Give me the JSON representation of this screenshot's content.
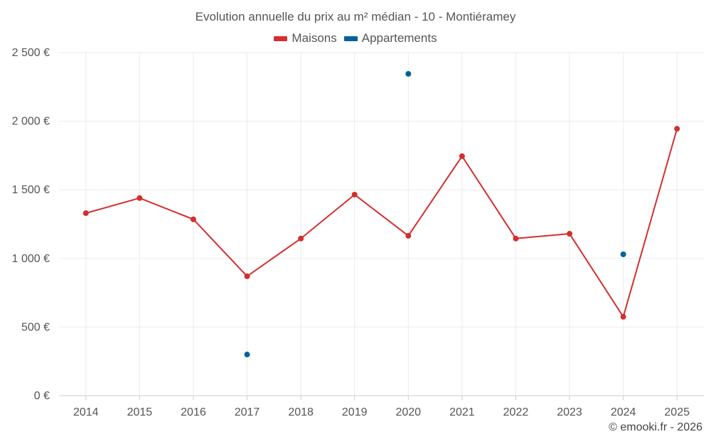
{
  "chart_data": {
    "type": "line",
    "title": "Evolution annuelle du prix au m² médian - 10 - Montiéramey",
    "xlabel": "",
    "ylabel": "",
    "categories": [
      "2014",
      "2015",
      "2016",
      "2017",
      "2018",
      "2019",
      "2020",
      "2021",
      "2022",
      "2023",
      "2024",
      "2025"
    ],
    "ylim": [
      0,
      2500
    ],
    "yticks": [
      0,
      500,
      1000,
      1500,
      2000,
      2500
    ],
    "ytick_labels": [
      "0 €",
      "500 €",
      "1 000 €",
      "1 500 €",
      "2 000 €",
      "2 500 €"
    ],
    "grid": true,
    "legend_position": "top-center",
    "series": [
      {
        "name": "Maisons",
        "color": "#d32f2f",
        "style": "line-markers",
        "values": [
          1330,
          1440,
          1285,
          870,
          1145,
          1465,
          1165,
          1745,
          1145,
          1180,
          575,
          1945
        ]
      },
      {
        "name": "Appartements",
        "color": "#01629c",
        "style": "markers",
        "values": [
          null,
          null,
          null,
          300,
          null,
          null,
          2345,
          null,
          null,
          null,
          1030,
          null
        ]
      }
    ]
  },
  "footer": {
    "credit": "© emooki.fr - 2026"
  }
}
